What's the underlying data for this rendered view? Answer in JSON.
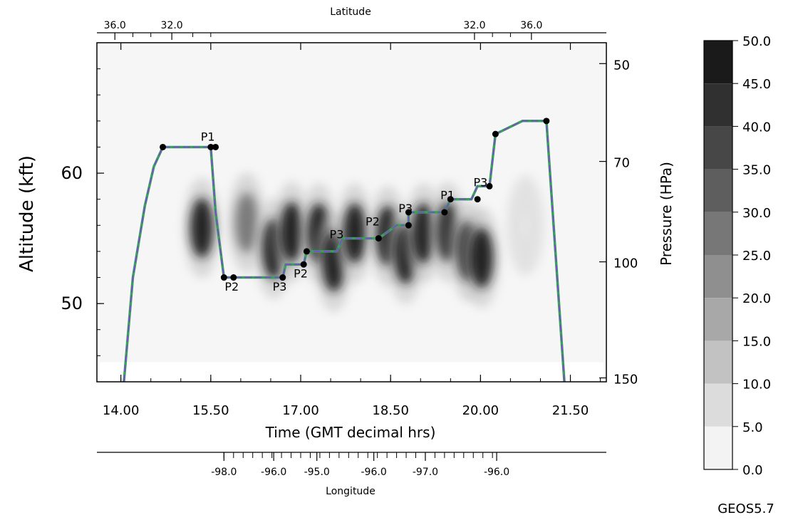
{
  "chart_data": {
    "type": "heatmap",
    "title": "",
    "xlabel": "Time (GMT decimal hrs)",
    "ylabel": "Altitude (kft)",
    "y2label": "Pressure (HPa)",
    "top_axis_label": "Latitude",
    "bottom2_axis_label": "Longitude",
    "model_label": "GEOS5.7",
    "xlim": [
      13.6,
      22.1
    ],
    "ylim": [
      44,
      70
    ],
    "x_ticks": [
      "14.00",
      "15.50",
      "17.00",
      "18.50",
      "20.00",
      "21.50"
    ],
    "x_tick_values": [
      14.0,
      15.5,
      17.0,
      18.5,
      20.0,
      21.5
    ],
    "y_ticks": [
      "50",
      "60"
    ],
    "y_tick_values": [
      50,
      60
    ],
    "pressure_ticks": [
      "50",
      "70",
      "100",
      "150"
    ],
    "pressure_tick_altitudes": [
      68.4,
      60.9,
      53.2,
      44.3
    ],
    "latitude_ticks": [
      "36.0",
      "32.0",
      "32.0",
      "36.0"
    ],
    "latitude_tick_times": [
      13.9,
      14.85,
      19.9,
      20.85
    ],
    "longitude_ticks": [
      "-98.0",
      "-96.0",
      "-95.0",
      "-96.0",
      "-97.0",
      "-96.0"
    ],
    "longitude_tick_times": [
      15.72,
      16.55,
      17.27,
      18.22,
      19.08,
      20.27
    ],
    "colorbar": {
      "levels": [
        "50.0",
        "45.0",
        "40.0",
        "35.0",
        "30.0",
        "25.0",
        "20.0",
        "15.0",
        "10.0",
        "5.0",
        "0.0"
      ],
      "colors": [
        "#1a1a1a",
        "#303030",
        "#474747",
        "#5e5e5e",
        "#777777",
        "#8f8f8f",
        "#a8a8a8",
        "#c2c2c2",
        "#dcdcdc",
        "#f3f3f3"
      ]
    },
    "flight_track": {
      "times": [
        14.05,
        14.2,
        14.4,
        14.55,
        14.7,
        15.5,
        15.58,
        15.72,
        15.88,
        16.1,
        16.4,
        16.7,
        16.75,
        16.95,
        17.05,
        17.1,
        17.3,
        17.6,
        17.7,
        18.0,
        18.3,
        18.6,
        18.8,
        18.8,
        19.1,
        19.4,
        19.5,
        19.85,
        19.95,
        20.15,
        20.25,
        20.7,
        21.1,
        21.4
      ],
      "altitudes": [
        44,
        52,
        57.5,
        60.5,
        62,
        62,
        57,
        52,
        52,
        52,
        52,
        52,
        53,
        53,
        53,
        54,
        54,
        54,
        55,
        55,
        55,
        56,
        56,
        57,
        57,
        57,
        58,
        58,
        59,
        59,
        63,
        64,
        64,
        44
      ]
    },
    "flight_points": {
      "times": [
        14.7,
        15.5,
        15.58,
        15.72,
        15.88,
        16.7,
        17.05,
        17.1,
        18.3,
        18.8,
        18.8,
        19.4,
        19.5,
        19.95,
        20.15,
        20.25,
        21.1
      ],
      "altitudes": [
        62,
        62,
        62,
        52,
        52,
        52,
        53,
        54,
        55,
        56,
        57,
        57,
        58,
        58,
        59,
        63,
        64
      ]
    },
    "markers": [
      {
        "label": "P1",
        "time": 15.45,
        "altitude": 62.5
      },
      {
        "label": "P2",
        "time": 15.85,
        "altitude": 51.0
      },
      {
        "label": "P3",
        "time": 16.65,
        "altitude": 51.0
      },
      {
        "label": "P2",
        "time": 17.0,
        "altitude": 52.0
      },
      {
        "label": "P3",
        "time": 17.6,
        "altitude": 55.0
      },
      {
        "label": "P2",
        "time": 18.2,
        "altitude": 56.0
      },
      {
        "label": "P3",
        "time": 18.75,
        "altitude": 57.0
      },
      {
        "label": "P1",
        "time": 19.45,
        "altitude": 58.0
      },
      {
        "label": "P3",
        "time": 20.0,
        "altitude": 59.0
      }
    ],
    "cloud_blobs": [
      {
        "time": 15.35,
        "altitude": 55.8,
        "value": 48
      },
      {
        "time": 16.1,
        "altitude": 56.2,
        "value": 30
      },
      {
        "time": 16.55,
        "altitude": 54.2,
        "value": 48
      },
      {
        "time": 16.85,
        "altitude": 55.5,
        "value": 48
      },
      {
        "time": 17.3,
        "altitude": 55.4,
        "value": 48
      },
      {
        "time": 17.55,
        "altitude": 53.2,
        "value": 48
      },
      {
        "time": 17.9,
        "altitude": 55.4,
        "value": 48
      },
      {
        "time": 18.45,
        "altitude": 55.2,
        "value": 48
      },
      {
        "time": 18.75,
        "altitude": 53.8,
        "value": 48
      },
      {
        "time": 19.05,
        "altitude": 55.4,
        "value": 48
      },
      {
        "time": 19.45,
        "altitude": 55.5,
        "value": 45
      },
      {
        "time": 19.8,
        "altitude": 54.0,
        "value": 48
      },
      {
        "time": 20.02,
        "altitude": 53.5,
        "value": 48
      },
      {
        "time": 20.75,
        "altitude": 56.0,
        "value": 5
      }
    ]
  }
}
